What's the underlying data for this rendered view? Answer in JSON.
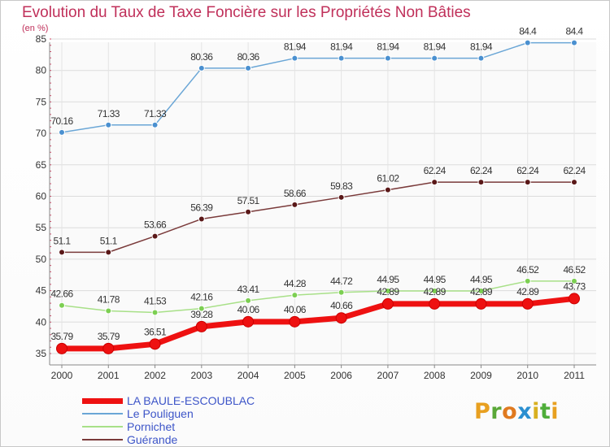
{
  "title": "Evolution du Taux de Taxe Foncière sur les Propriétés Non Bâties",
  "unit": "(en %)",
  "brand": {
    "letters": [
      "P",
      "r",
      "o",
      "x",
      "i",
      "t",
      "i"
    ],
    "colors": [
      "#e8a020",
      "#5aa838",
      "#e07a20",
      "#2a8fd0",
      "#d8b020",
      "#4fae3a",
      "#e8a020"
    ]
  },
  "chart_data": {
    "type": "line",
    "title": "Evolution du Taux de Taxe Foncière sur les Propriétés Non Bâties",
    "ylabel": "(en %)",
    "xlabel": "",
    "ylim": [
      35,
      85
    ],
    "yticks": [
      35,
      40,
      45,
      50,
      55,
      60,
      65,
      70,
      75,
      80,
      85
    ],
    "categories": [
      "2000",
      "2001",
      "2002",
      "2003",
      "2004",
      "2005",
      "2006",
      "2007",
      "2008",
      "2009",
      "2010",
      "2011"
    ],
    "series": [
      {
        "name": "Le Pouliguen",
        "color": "#6aa6d6",
        "marker": "#4a90d0",
        "values": [
          70.16,
          71.33,
          71.33,
          80.36,
          80.36,
          81.94,
          81.94,
          81.94,
          81.94,
          81.94,
          84.4,
          84.4
        ],
        "labels": [
          "70.16",
          "71.33",
          "71.33",
          "80.36",
          "80.36",
          "81.94",
          "81.94",
          "81.94",
          "81.94",
          "81.94",
          "84.4",
          "84.4"
        ]
      },
      {
        "name": "Guérande",
        "color": "#7a3a3a",
        "marker": "#5a1818",
        "values": [
          51.1,
          51.1,
          53.66,
          56.39,
          57.51,
          58.66,
          59.83,
          61.02,
          62.24,
          62.24,
          62.24,
          62.24
        ],
        "labels": [
          "51.1",
          "51.1",
          "53.66",
          "56.39",
          "57.51",
          "58.66",
          "59.83",
          "61.02",
          "62.24",
          "62.24",
          "62.24",
          "62.24"
        ]
      },
      {
        "name": "Pornichet",
        "color": "#a8e088",
        "marker": "#7ccf52",
        "values": [
          42.66,
          41.78,
          41.53,
          42.16,
          43.41,
          44.28,
          44.72,
          44.95,
          44.95,
          44.95,
          46.52,
          46.52
        ],
        "labels": [
          "42.66",
          "41.78",
          "41.53",
          "42.16",
          "43.41",
          "44.28",
          "44.72",
          "44.95",
          "44.95",
          "44.95",
          "46.52",
          "46.52"
        ]
      },
      {
        "name": "LA BAULE-ESCOUBLAC",
        "color": "#ee1111",
        "marker": "#ee1111",
        "values": [
          35.79,
          35.79,
          36.51,
          39.28,
          40.06,
          40.06,
          40.66,
          42.89,
          42.89,
          42.89,
          42.89,
          43.73
        ],
        "labels": [
          "35.79",
          "35.79",
          "36.51",
          "39.28",
          "40.06",
          "40.06",
          "40.66",
          "42.89",
          "42.89",
          "42.89",
          "42.89",
          "43.73"
        ]
      }
    ],
    "legend": [
      {
        "name": "LA BAULE-ESCOUBLAC",
        "color": "#ee1111",
        "weight": 7
      },
      {
        "name": "Le Pouliguen",
        "color": "#6aa6d6",
        "weight": 2
      },
      {
        "name": "Pornichet",
        "color": "#a8e088",
        "weight": 2
      },
      {
        "name": "Guérande",
        "color": "#7a3a3a",
        "weight": 2
      }
    ],
    "grid": true,
    "legend_position": "bottom-left"
  }
}
